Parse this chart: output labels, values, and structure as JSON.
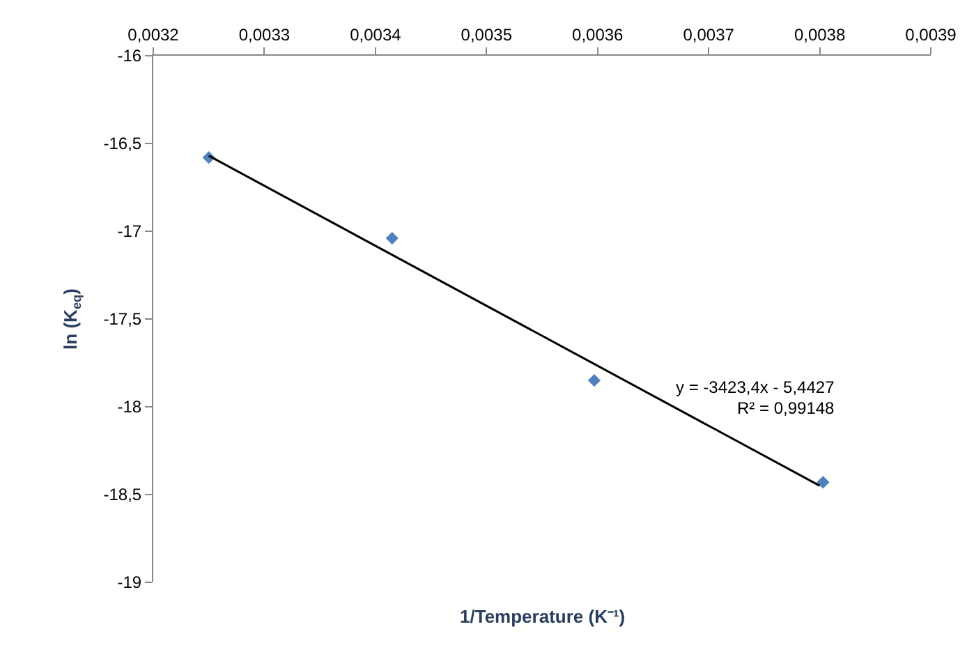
{
  "chart_data": {
    "type": "scatter",
    "xlabel": "1/Temperature (K⁻¹)",
    "ylabel": "ln (K$_{eq}$)",
    "series": [
      {
        "color": "#4f81bd",
        "marker": "diamond",
        "x": [
          0.00325,
          0.003415,
          0.003597,
          0.003803
        ],
        "values": [
          -16.58,
          -17.04,
          -17.85,
          -18.43
        ]
      },
      {
        "type": "line",
        "color": "#000000",
        "marker": "none",
        "line_style": "solid",
        "x": [
          0.00325,
          0.0038
        ],
        "values": [
          -16.57,
          -18.45
        ]
      }
    ],
    "xlim": [
      0.0032,
      0.0039
    ],
    "xticks": [
      {
        "value": 0.0032,
        "label": "0,0032"
      },
      {
        "value": 0.0033,
        "label": "0,0033"
      },
      {
        "value": 0.0034,
        "label": "0,0034"
      },
      {
        "value": 0.0035,
        "label": "0,0035"
      },
      {
        "value": 0.0036,
        "label": "0,0036"
      },
      {
        "value": 0.0037,
        "label": "0,0037"
      },
      {
        "value": 0.0038,
        "label": "0,0038"
      },
      {
        "value": 0.0039,
        "label": "0,0039"
      }
    ],
    "ylim": [
      -19,
      -16
    ],
    "yticks": [
      -16,
      {
        "value": -16.5,
        "label": "-16,5"
      },
      -17,
      {
        "value": -17.5,
        "label": "-17,5"
      },
      -18,
      {
        "value": -18.5,
        "label": "-18,5"
      },
      -19
    ],
    "annotations": [
      "y = -3423,4x - 5,4427",
      "R² = 0,99148"
    ]
  }
}
